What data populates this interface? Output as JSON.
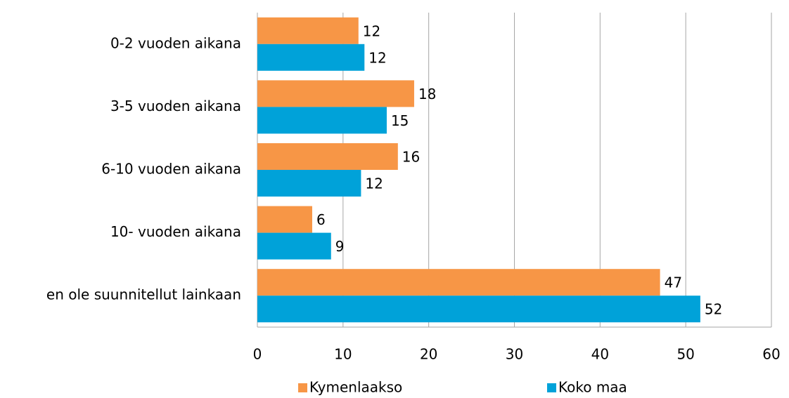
{
  "chart_data": {
    "type": "bar",
    "orientation": "horizontal",
    "categories": [
      "0-2 vuoden aikana",
      "3-5 vuoden aikana",
      "6-10 vuoden aikana",
      "10- vuoden aikana",
      "en ole suunnitellut  lainkaan"
    ],
    "series": [
      {
        "name": "Kymenlaakso",
        "color": "#f79646",
        "values": [
          11.8,
          18.3,
          16.4,
          6.4,
          47
        ],
        "value_labels": [
          "12",
          "18",
          "16",
          "6",
          "47"
        ]
      },
      {
        "name": "Koko maa",
        "color": "#00a2d9",
        "values": [
          12.5,
          15.1,
          12.1,
          8.6,
          51.7
        ],
        "value_labels": [
          "12",
          "15",
          "12",
          "9",
          "52"
        ]
      }
    ],
    "xlim": [
      0,
      60
    ],
    "xticks": [
      0,
      10,
      20,
      30,
      40,
      50,
      60
    ],
    "grid": true,
    "legend": "bottom"
  }
}
